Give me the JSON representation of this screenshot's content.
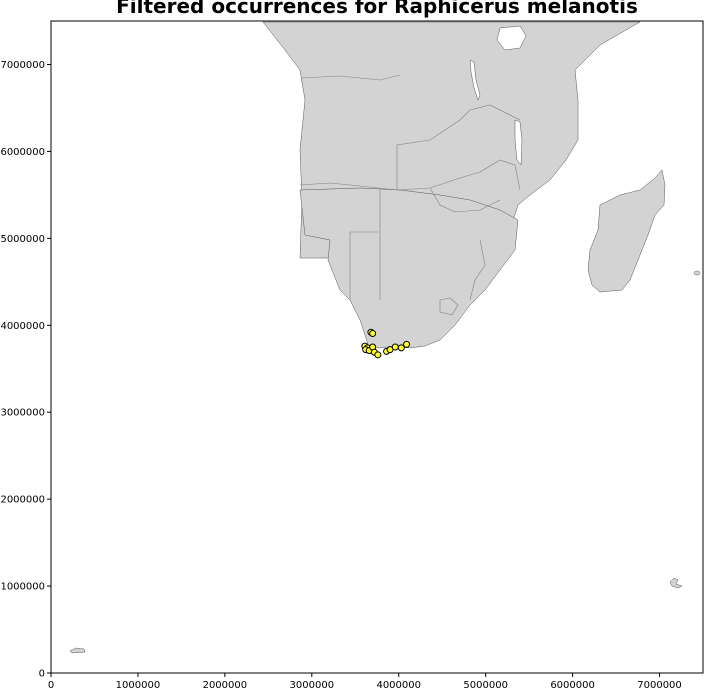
{
  "title": "Filtered occurrences for Raphicerus melanotis",
  "colors": {
    "land": "#d3d3d3",
    "border": "#808080",
    "coast": "#555555",
    "point_fill": "#ffff33",
    "point_edge": "#000000"
  },
  "chart_data": {
    "type": "scatter",
    "title": "Filtered occurrences for Raphicerus melanotis",
    "xlabel": "",
    "ylabel": "",
    "xlim": [
      0,
      7500000
    ],
    "ylim": [
      0,
      7500000
    ],
    "grid": false,
    "x_ticks": [
      "0",
      "1000000",
      "2000000",
      "3000000",
      "4000000",
      "5000000",
      "6000000",
      "7000000"
    ],
    "y_ticks": [
      "0",
      "1000000",
      "2000000",
      "3000000",
      "4000000",
      "5000000",
      "6000000",
      "7000000"
    ],
    "series": [
      {
        "points": [
          [
            3680000,
            3920000
          ],
          [
            3700000,
            3905000
          ],
          [
            3610000,
            3760000
          ],
          [
            3640000,
            3740000
          ],
          [
            3620000,
            3720000
          ],
          [
            3660000,
            3710000
          ],
          [
            3700000,
            3750000
          ],
          [
            3720000,
            3690000
          ],
          [
            3760000,
            3660000
          ],
          [
            3860000,
            3700000
          ],
          [
            3900000,
            3720000
          ],
          [
            3960000,
            3750000
          ],
          [
            4030000,
            3740000
          ],
          [
            4090000,
            3780000
          ]
        ]
      }
    ]
  }
}
